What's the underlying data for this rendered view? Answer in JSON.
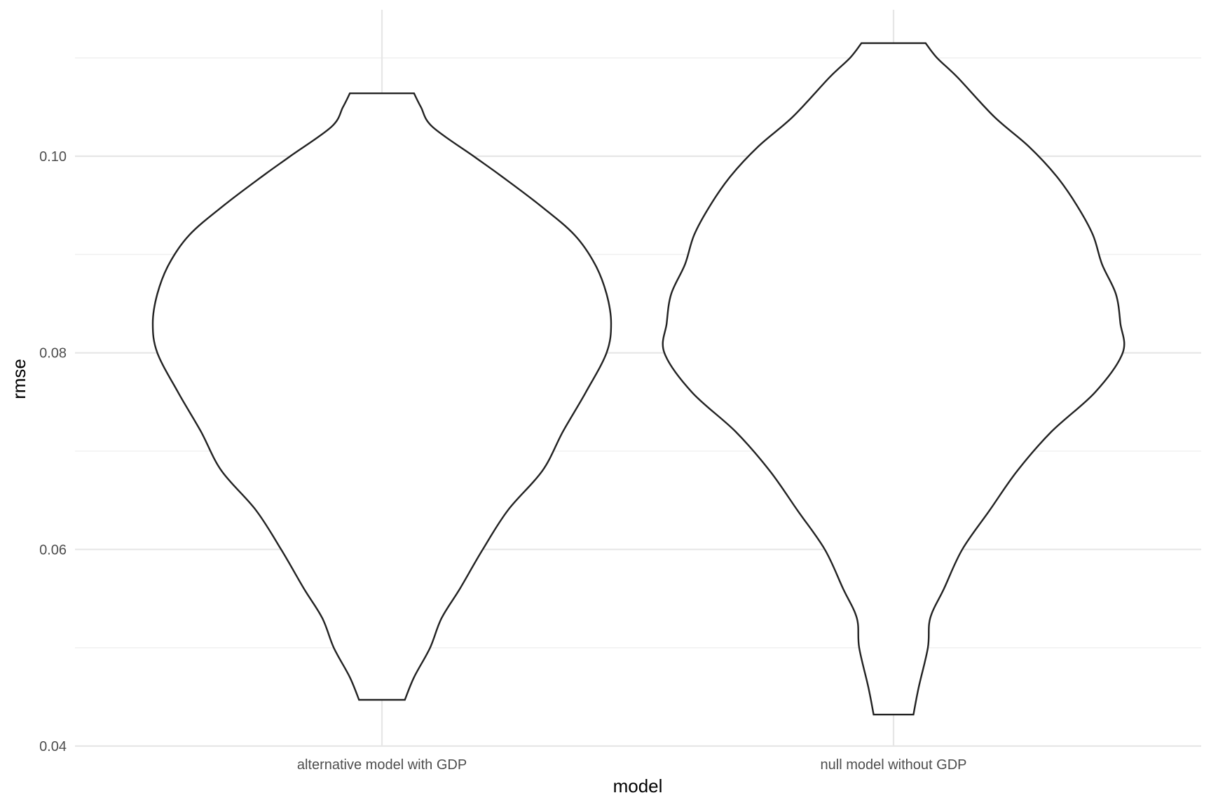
{
  "chart_data": {
    "type": "violin",
    "xlabel": "model",
    "ylabel": "rmse",
    "ylim": [
      0.04,
      0.112
    ],
    "y_ticks": [
      {
        "value": 0.04,
        "label": "0.04"
      },
      {
        "value": 0.06,
        "label": "0.06"
      },
      {
        "value": 0.08,
        "label": "0.08"
      },
      {
        "value": 0.1,
        "label": "0.10"
      }
    ],
    "y_minor": [
      0.05,
      0.07,
      0.09,
      0.11
    ],
    "grid": true,
    "legend": "none",
    "categories": [
      "alternative model with GDP",
      "null model without GDP"
    ],
    "series": [
      {
        "category": "alternative model with GDP",
        "min": 0.0447,
        "max": 0.1064,
        "density_profile": [
          [
            0.0447,
            0.1
          ],
          [
            0.047,
            0.14
          ],
          [
            0.05,
            0.21
          ],
          [
            0.053,
            0.26
          ],
          [
            0.056,
            0.34
          ],
          [
            0.06,
            0.44
          ],
          [
            0.064,
            0.55
          ],
          [
            0.068,
            0.7
          ],
          [
            0.072,
            0.79
          ],
          [
            0.076,
            0.89
          ],
          [
            0.08,
            0.98
          ],
          [
            0.083,
            1.0
          ],
          [
            0.086,
            0.98
          ],
          [
            0.089,
            0.93
          ],
          [
            0.092,
            0.84
          ],
          [
            0.095,
            0.69
          ],
          [
            0.098,
            0.52
          ],
          [
            0.1,
            0.4
          ],
          [
            0.103,
            0.22
          ],
          [
            0.105,
            0.17
          ],
          [
            0.1064,
            0.14
          ]
        ]
      },
      {
        "category": "null model without GDP",
        "min": 0.0432,
        "max": 0.1115,
        "density_profile": [
          [
            0.0432,
            0.087
          ],
          [
            0.046,
            0.11
          ],
          [
            0.05,
            0.15
          ],
          [
            0.053,
            0.16
          ],
          [
            0.056,
            0.22
          ],
          [
            0.06,
            0.3
          ],
          [
            0.064,
            0.42
          ],
          [
            0.068,
            0.54
          ],
          [
            0.072,
            0.69
          ],
          [
            0.076,
            0.88
          ],
          [
            0.08,
            1.0
          ],
          [
            0.083,
            0.99
          ],
          [
            0.086,
            0.97
          ],
          [
            0.089,
            0.91
          ],
          [
            0.092,
            0.87
          ],
          [
            0.095,
            0.8
          ],
          [
            0.098,
            0.71
          ],
          [
            0.101,
            0.59
          ],
          [
            0.104,
            0.44
          ],
          [
            0.108,
            0.28
          ],
          [
            0.11,
            0.19
          ],
          [
            0.1115,
            0.14
          ]
        ]
      }
    ]
  }
}
